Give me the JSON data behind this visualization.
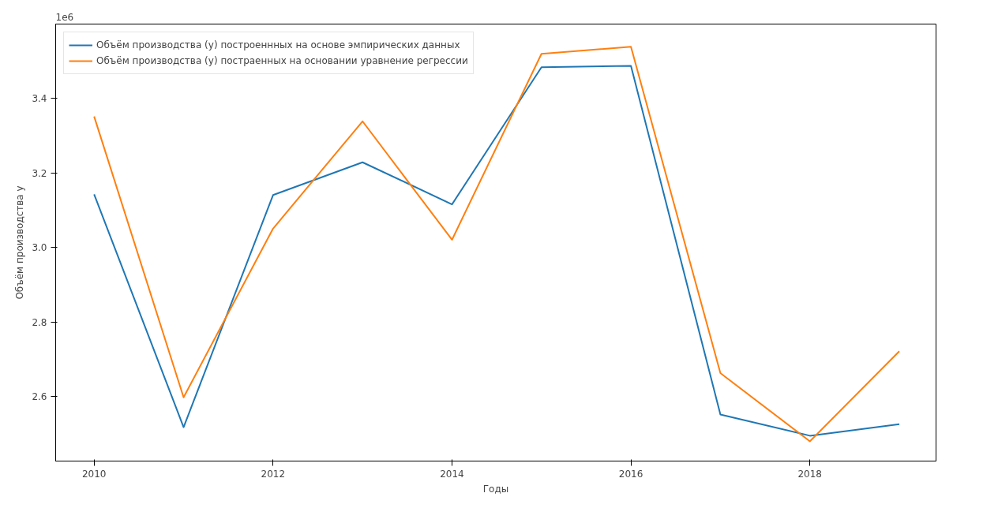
{
  "chart_data": {
    "type": "line",
    "xlabel": "Годы",
    "ylabel": "Объём производства у",
    "annotations": [
      "1e6"
    ],
    "x": [
      2010,
      2011,
      2012,
      2013,
      2014,
      2015,
      2016,
      2017,
      2018,
      2019
    ],
    "series": [
      {
        "name": "Объём производства (у) построеннных на основе эмпирических данных",
        "color": "#1f77b4",
        "values": [
          3.143,
          2.518,
          3.141,
          3.229,
          3.116,
          3.484,
          3.488,
          2.552,
          2.495,
          2.526
        ]
      },
      {
        "name": "Объём производства (у) постраенных на основании уравнение регрессии",
        "color": "#ff7f0e",
        "values": [
          3.352,
          2.598,
          3.051,
          3.339,
          3.021,
          3.52,
          3.539,
          2.663,
          2.48,
          2.722
        ]
      }
    ],
    "xlim": [
      2009.57,
      2019.41
    ],
    "ylim": [
      2.427,
      3.6
    ],
    "xticks": [
      2010,
      2012,
      2014,
      2016,
      2018
    ],
    "yticks": [
      {
        "value": 2.6,
        "label": "2.6"
      },
      {
        "value": 2.8,
        "label": "2.8"
      },
      {
        "value": 3.0,
        "label": "3.0"
      },
      {
        "value": 3.2,
        "label": "3.2"
      },
      {
        "value": 3.4,
        "label": "3.4"
      }
    ],
    "grid": false,
    "legend": "top left",
    "marker": "none",
    "line_style": "solid"
  }
}
